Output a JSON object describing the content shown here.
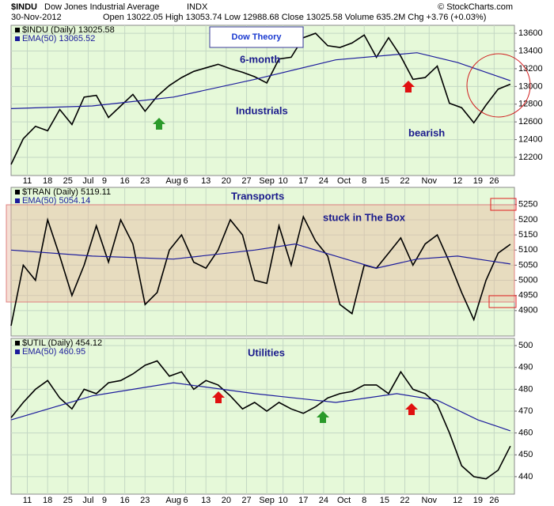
{
  "header": {
    "symbol": "$INDU",
    "name": "Dow Jones Industrial Average",
    "exchange": "INDX",
    "date": "30-Nov-2012",
    "stats": "Open 13022.05  High 13053.74  Low 12988.68  Close 13025.58  Volume 635.2M  Chg +3.76 (+0.03%)",
    "copyright": "© StockCharts.com",
    "callout": "Dow Theory"
  },
  "chart_data": [
    {
      "type": "line",
      "title": "Industrials",
      "annotations": [
        "6-month",
        "bearish"
      ],
      "xlim": [
        0,
        124
      ],
      "xticks": [
        {
          "value": 4,
          "label": "11"
        },
        {
          "value": 9,
          "label": "18"
        },
        {
          "value": 14,
          "label": "25"
        },
        {
          "value": 19,
          "label": "Jul"
        },
        {
          "value": 23,
          "label": "9"
        },
        {
          "value": 28,
          "label": "16"
        },
        {
          "value": 33,
          "label": "23"
        },
        {
          "value": 40,
          "label": "Aug"
        },
        {
          "value": 43,
          "label": "6"
        },
        {
          "value": 48,
          "label": "13"
        },
        {
          "value": 53,
          "label": "20"
        },
        {
          "value": 58,
          "label": "27"
        },
        {
          "value": 63,
          "label": "Sep"
        },
        {
          "value": 67,
          "label": "10"
        },
        {
          "value": 72,
          "label": "17"
        },
        {
          "value": 77,
          "label": "24"
        },
        {
          "value": 82,
          "label": "Oct"
        },
        {
          "value": 87,
          "label": "8"
        },
        {
          "value": 92,
          "label": "15"
        },
        {
          "value": 97,
          "label": "22"
        },
        {
          "value": 103,
          "label": "Nov"
        },
        {
          "value": 110,
          "label": "12"
        },
        {
          "value": 115,
          "label": "19"
        },
        {
          "value": 119,
          "label": "26"
        }
      ],
      "ylim": [
        11995,
        13690
      ],
      "yticks": [
        12200,
        12400,
        12600,
        12800,
        13000,
        13200,
        13400,
        13600
      ],
      "grid": true,
      "series": [
        {
          "name": "$INDU (Daily) 13025.58",
          "color": "#000000",
          "x": [
            0,
            3,
            6,
            9,
            12,
            15,
            18,
            21,
            24,
            27,
            30,
            33,
            36,
            39,
            42,
            45,
            48,
            51,
            54,
            57,
            60,
            63,
            66,
            69,
            72,
            75,
            78,
            81,
            84,
            87,
            90,
            93,
            96,
            99,
            102,
            105,
            108,
            111,
            114,
            117,
            120,
            123
          ],
          "values": [
            12120,
            12410,
            12550,
            12500,
            12740,
            12570,
            12880,
            12900,
            12650,
            12780,
            12910,
            12720,
            12890,
            13010,
            13100,
            13170,
            13210,
            13250,
            13200,
            13160,
            13110,
            13040,
            13310,
            13330,
            13550,
            13600,
            13460,
            13440,
            13490,
            13580,
            13330,
            13550,
            13340,
            13080,
            13100,
            13230,
            12810,
            12760,
            12590,
            12790,
            12970,
            13025
          ]
        },
        {
          "name": "EMA(50) 13065.52",
          "color": "#1c1c9c",
          "x": [
            0,
            20,
            40,
            60,
            80,
            100,
            110,
            123
          ],
          "values": [
            12750,
            12780,
            12880,
            13080,
            13300,
            13380,
            13270,
            13065
          ]
        }
      ]
    },
    {
      "type": "line",
      "title": "Transports",
      "annotations": [
        "stuck in The Box"
      ],
      "xlim": [
        0,
        124
      ],
      "ylim": [
        4816,
        5307
      ],
      "yticks": [
        4900,
        4950,
        5000,
        5050,
        5100,
        5150,
        5200,
        5250
      ],
      "grid": true,
      "series": [
        {
          "name": "$TRAN (Daily) 5119.11",
          "color": "#000000",
          "x": [
            0,
            3,
            6,
            9,
            12,
            15,
            18,
            21,
            24,
            27,
            30,
            33,
            36,
            39,
            42,
            45,
            48,
            51,
            54,
            57,
            60,
            63,
            66,
            69,
            72,
            75,
            78,
            81,
            84,
            87,
            90,
            93,
            96,
            99,
            102,
            105,
            108,
            111,
            114,
            117,
            120,
            123
          ],
          "values": [
            4850,
            5050,
            5000,
            5200,
            5080,
            4950,
            5050,
            5180,
            5060,
            5200,
            5120,
            4920,
            4960,
            5100,
            5150,
            5060,
            5040,
            5100,
            5200,
            5150,
            5000,
            4990,
            5180,
            5050,
            5210,
            5130,
            5080,
            4920,
            4890,
            5050,
            5040,
            5090,
            5140,
            5050,
            5120,
            5150,
            5060,
            4960,
            4870,
            5000,
            5090,
            5119
          ]
        },
        {
          "name": "EMA(50) 5054.14",
          "color": "#1c1c9c",
          "x": [
            0,
            20,
            40,
            60,
            70,
            80,
            90,
            100,
            110,
            123
          ],
          "values": [
            5100,
            5080,
            5070,
            5100,
            5120,
            5080,
            5040,
            5070,
            5080,
            5054
          ]
        }
      ]
    },
    {
      "type": "line",
      "title": "Utilities",
      "annotations": [],
      "xlim": [
        0,
        124
      ],
      "xticks": [
        {
          "value": 4,
          "label": "11"
        },
        {
          "value": 9,
          "label": "18"
        },
        {
          "value": 14,
          "label": "25"
        },
        {
          "value": 19,
          "label": "Jul"
        },
        {
          "value": 23,
          "label": "9"
        },
        {
          "value": 28,
          "label": "16"
        },
        {
          "value": 33,
          "label": "23"
        },
        {
          "value": 40,
          "label": "Aug"
        },
        {
          "value": 43,
          "label": "6"
        },
        {
          "value": 48,
          "label": "13"
        },
        {
          "value": 53,
          "label": "20"
        },
        {
          "value": 58,
          "label": "27"
        },
        {
          "value": 63,
          "label": "Sep"
        },
        {
          "value": 67,
          "label": "10"
        },
        {
          "value": 72,
          "label": "17"
        },
        {
          "value": 77,
          "label": "24"
        },
        {
          "value": 82,
          "label": "Oct"
        },
        {
          "value": 87,
          "label": "8"
        },
        {
          "value": 92,
          "label": "15"
        },
        {
          "value": 97,
          "label": "22"
        },
        {
          "value": 103,
          "label": "Nov"
        },
        {
          "value": 110,
          "label": "12"
        },
        {
          "value": 115,
          "label": "19"
        },
        {
          "value": 119,
          "label": "26"
        }
      ],
      "ylim": [
        432,
        503.3
      ],
      "yticks": [
        440,
        450,
        460,
        470,
        480,
        490,
        500
      ],
      "grid": true,
      "series": [
        {
          "name": "$UTIL (Daily) 454.12",
          "color": "#000000",
          "x": [
            0,
            3,
            6,
            9,
            12,
            15,
            18,
            21,
            24,
            27,
            30,
            33,
            36,
            39,
            42,
            45,
            48,
            51,
            54,
            57,
            60,
            63,
            66,
            69,
            72,
            75,
            78,
            81,
            84,
            87,
            90,
            93,
            96,
            99,
            102,
            105,
            108,
            111,
            114,
            117,
            120,
            123
          ],
          "values": [
            467,
            474,
            480,
            484,
            476,
            471,
            480,
            478,
            483,
            484,
            487,
            491,
            493,
            486,
            488,
            480,
            484,
            482,
            477,
            471,
            474,
            470,
            474,
            471,
            469,
            472,
            476,
            478,
            479,
            482,
            482,
            478,
            488,
            480,
            478,
            473,
            460,
            445,
            440,
            439,
            443,
            454
          ]
        },
        {
          "name": "EMA(50) 460.95",
          "color": "#1c1c9c",
          "x": [
            0,
            20,
            40,
            60,
            80,
            95,
            105,
            115,
            123
          ],
          "values": [
            466,
            477,
            483,
            478,
            474,
            478,
            475,
            466,
            461
          ]
        }
      ]
    }
  ]
}
